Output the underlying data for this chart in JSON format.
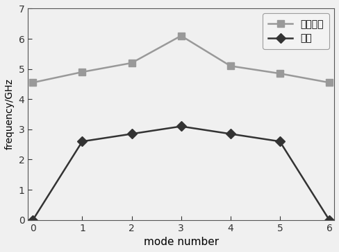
{
  "x": [
    0,
    1,
    2,
    3,
    4,
    5,
    6
  ],
  "harmonic_y": [
    4.55,
    4.9,
    5.2,
    6.1,
    5.1,
    4.85,
    4.55
  ],
  "fundamental_y": [
    0.0,
    2.6,
    2.85,
    3.1,
    2.85,
    2.6,
    0.0
  ],
  "harmonic_label": "一次谐波",
  "fundamental_label": "基波",
  "xlabel": "mode number",
  "ylabel": "frequency/GHz",
  "xlim": [
    -0.1,
    6.1
  ],
  "ylim": [
    0,
    7
  ],
  "yticks": [
    0,
    1,
    2,
    3,
    4,
    5,
    6,
    7
  ],
  "xticks": [
    0,
    1,
    2,
    3,
    4,
    5,
    6
  ],
  "harmonic_color": "#999999",
  "fundamental_color": "#333333",
  "harmonic_marker": "s",
  "fundamental_marker": "D",
  "linewidth": 1.8,
  "markersize": 7,
  "background_color": "#f0f0f0",
  "legend_loc": "upper right",
  "xlabel_fontsize": 11,
  "ylabel_fontsize": 10,
  "tick_fontsize": 10
}
